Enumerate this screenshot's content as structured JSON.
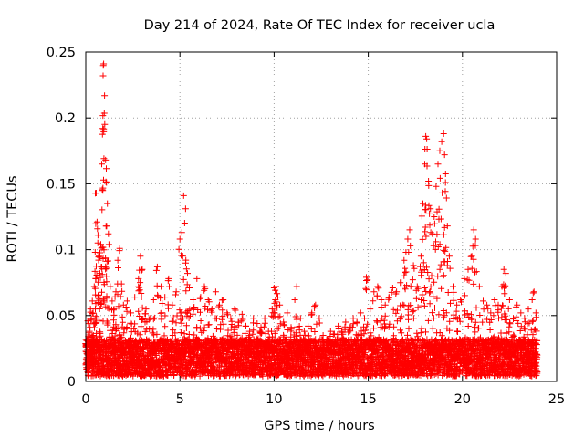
{
  "chart_data": {
    "type": "scatter",
    "title": "Day 214 of 2024, Rate Of TEC Index for receiver ucla",
    "xlabel": "GPS time / hours",
    "ylabel": "ROTI / TECUs",
    "xlim": [
      0,
      25
    ],
    "ylim": [
      0,
      0.25
    ],
    "xticks": [
      "0",
      "5",
      "10",
      "15",
      "20",
      "25"
    ],
    "yticks": [
      "0",
      "0.05",
      "0.1",
      "0.15",
      "0.2",
      "0.25"
    ],
    "grid": true,
    "marker": "plus",
    "color": "#ff0000",
    "series": [
      {
        "name": "",
        "points": [
          [
            0.05,
            0.031
          ],
          [
            0.1,
            0.046
          ],
          [
            0.15,
            0.022
          ],
          [
            0.2,
            0.038
          ],
          [
            0.25,
            0.055
          ],
          [
            0.3,
            0.027
          ],
          [
            0.35,
            0.061
          ],
          [
            0.4,
            0.035
          ],
          [
            0.45,
            0.072
          ],
          [
            0.5,
            0.098
          ],
          [
            0.55,
            0.143
          ],
          [
            0.6,
            0.121
          ],
          [
            0.65,
            0.111
          ],
          [
            0.7,
            0.095
          ],
          [
            0.75,
            0.082
          ],
          [
            0.8,
            0.104
          ],
          [
            0.85,
            0.165
          ],
          [
            0.9,
            0.192
          ],
          [
            0.92,
            0.232
          ],
          [
            0.95,
            0.241
          ],
          [
            1.0,
            0.217
          ],
          [
            1.05,
            0.168
          ],
          [
            1.1,
            0.151
          ],
          [
            1.15,
            0.135
          ],
          [
            1.2,
            0.112
          ],
          [
            1.3,
            0.072
          ],
          [
            1.4,
            0.061
          ],
          [
            1.5,
            0.055
          ],
          [
            1.6,
            0.068
          ],
          [
            1.7,
            0.092
          ],
          [
            1.8,
            0.101
          ],
          [
            1.9,
            0.074
          ],
          [
            2.0,
            0.058
          ],
          [
            2.2,
            0.061
          ],
          [
            2.4,
            0.052
          ],
          [
            2.6,
            0.064
          ],
          [
            2.8,
            0.078
          ],
          [
            2.9,
            0.095
          ],
          [
            3.0,
            0.085
          ],
          [
            3.2,
            0.055
          ],
          [
            3.4,
            0.048
          ],
          [
            3.6,
            0.062
          ],
          [
            3.8,
            0.087
          ],
          [
            4.0,
            0.072
          ],
          [
            4.2,
            0.064
          ],
          [
            4.4,
            0.078
          ],
          [
            4.6,
            0.058
          ],
          [
            4.8,
            0.068
          ],
          [
            5.0,
            0.108
          ],
          [
            5.1,
            0.113
          ],
          [
            5.2,
            0.141
          ],
          [
            5.3,
            0.131
          ],
          [
            5.4,
            0.082
          ],
          [
            5.5,
            0.071
          ],
          [
            5.7,
            0.062
          ],
          [
            5.9,
            0.078
          ],
          [
            6.1,
            0.064
          ],
          [
            6.3,
            0.072
          ],
          [
            6.5,
            0.062
          ],
          [
            6.7,
            0.055
          ],
          [
            6.9,
            0.068
          ],
          [
            7.1,
            0.058
          ],
          [
            7.3,
            0.062
          ],
          [
            7.5,
            0.052
          ],
          [
            7.7,
            0.048
          ],
          [
            7.9,
            0.055
          ],
          [
            8.1,
            0.045
          ],
          [
            8.3,
            0.051
          ],
          [
            8.5,
            0.042
          ],
          [
            8.7,
            0.038
          ],
          [
            8.9,
            0.048
          ],
          [
            9.1,
            0.044
          ],
          [
            9.3,
            0.041
          ],
          [
            9.5,
            0.048
          ],
          [
            9.7,
            0.038
          ],
          [
            9.9,
            0.055
          ],
          [
            10.0,
            0.071
          ],
          [
            10.1,
            0.072
          ],
          [
            10.2,
            0.064
          ],
          [
            10.3,
            0.058
          ],
          [
            10.5,
            0.045
          ],
          [
            10.7,
            0.052
          ],
          [
            10.9,
            0.041
          ],
          [
            11.1,
            0.062
          ],
          [
            11.2,
            0.072
          ],
          [
            11.4,
            0.048
          ],
          [
            11.6,
            0.038
          ],
          [
            11.8,
            0.042
          ],
          [
            12.0,
            0.052
          ],
          [
            12.2,
            0.058
          ],
          [
            12.4,
            0.048
          ],
          [
            12.6,
            0.035
          ],
          [
            12.8,
            0.032
          ],
          [
            13.0,
            0.038
          ],
          [
            13.2,
            0.036
          ],
          [
            13.4,
            0.042
          ],
          [
            13.6,
            0.038
          ],
          [
            13.8,
            0.045
          ],
          [
            14.0,
            0.041
          ],
          [
            14.2,
            0.048
          ],
          [
            14.4,
            0.045
          ],
          [
            14.6,
            0.052
          ],
          [
            14.8,
            0.048
          ],
          [
            14.9,
            0.079
          ],
          [
            15.1,
            0.055
          ],
          [
            15.3,
            0.068
          ],
          [
            15.5,
            0.072
          ],
          [
            15.7,
            0.062
          ],
          [
            15.9,
            0.058
          ],
          [
            16.1,
            0.064
          ],
          [
            16.3,
            0.071
          ],
          [
            16.5,
            0.068
          ],
          [
            16.7,
            0.075
          ],
          [
            16.9,
            0.092
          ],
          [
            17.0,
            0.098
          ],
          [
            17.1,
            0.108
          ],
          [
            17.2,
            0.115
          ],
          [
            17.4,
            0.088
          ],
          [
            17.6,
            0.072
          ],
          [
            17.8,
            0.095
          ],
          [
            17.9,
            0.135
          ],
          [
            18.0,
            0.165
          ],
          [
            18.05,
            0.186
          ],
          [
            18.1,
            0.184
          ],
          [
            18.2,
            0.152
          ],
          [
            18.3,
            0.131
          ],
          [
            18.4,
            0.112
          ],
          [
            18.5,
            0.125
          ],
          [
            18.6,
            0.148
          ],
          [
            18.7,
            0.165
          ],
          [
            18.8,
            0.175
          ],
          [
            18.9,
            0.182
          ],
          [
            19.0,
            0.188
          ],
          [
            19.05,
            0.172
          ],
          [
            19.1,
            0.151
          ],
          [
            19.2,
            0.118
          ],
          [
            19.3,
            0.095
          ],
          [
            19.5,
            0.072
          ],
          [
            19.7,
            0.058
          ],
          [
            19.9,
            0.062
          ],
          [
            20.1,
            0.078
          ],
          [
            20.3,
            0.085
          ],
          [
            20.5,
            0.095
          ],
          [
            20.6,
            0.115
          ],
          [
            20.7,
            0.108
          ],
          [
            20.9,
            0.072
          ],
          [
            21.1,
            0.061
          ],
          [
            21.3,
            0.058
          ],
          [
            21.5,
            0.052
          ],
          [
            21.7,
            0.062
          ],
          [
            21.9,
            0.058
          ],
          [
            22.1,
            0.072
          ],
          [
            22.2,
            0.085
          ],
          [
            22.3,
            0.082
          ],
          [
            22.5,
            0.062
          ],
          [
            22.7,
            0.048
          ],
          [
            22.9,
            0.058
          ],
          [
            23.1,
            0.052
          ],
          [
            23.3,
            0.048
          ],
          [
            23.5,
            0.055
          ],
          [
            23.7,
            0.062
          ],
          [
            23.8,
            0.068
          ],
          [
            23.9,
            0.052
          ]
        ],
        "baseline": {
          "x_start": 0,
          "x_end": 24,
          "x_step": 0.03,
          "y_min": 0.004,
          "y_max": 0.032,
          "repeats": 6
        }
      }
    ]
  }
}
